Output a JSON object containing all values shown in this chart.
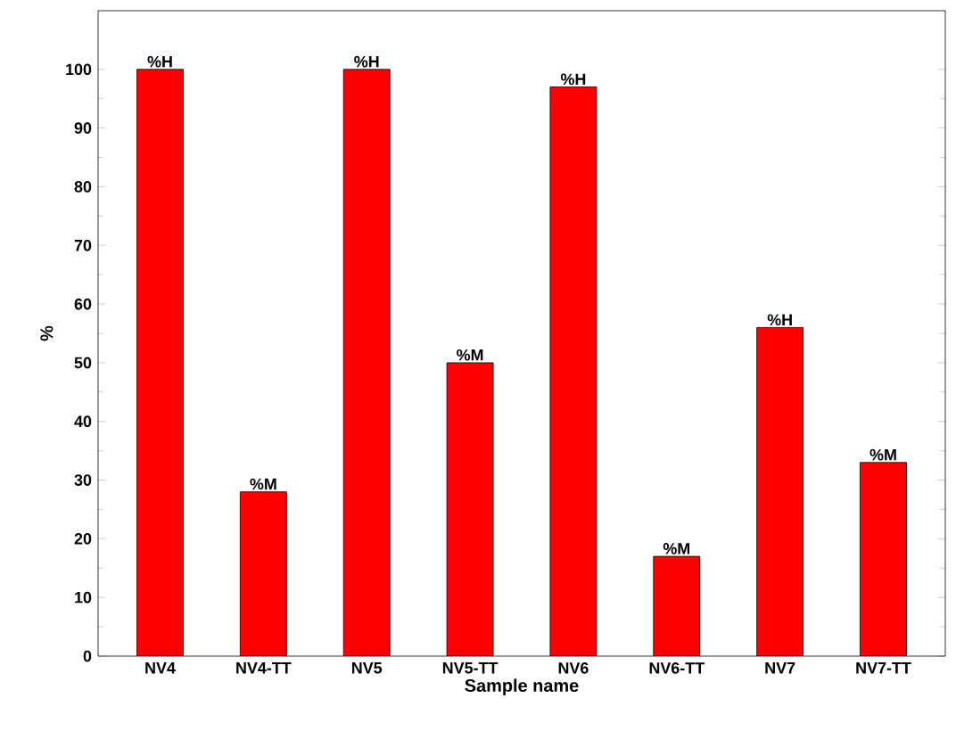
{
  "chart_data": {
    "type": "bar",
    "xlabel": "Sample name",
    "ylabel": "%",
    "categories": [
      "NV4",
      "NV4-TT",
      "NV5",
      "NV5-TT",
      "NV6",
      "NV6-TT",
      "NV7",
      "NV7-TT"
    ],
    "values": [
      100,
      28,
      100,
      50,
      97,
      17,
      56,
      33
    ],
    "color": "#ff0000",
    "ylim": [
      0,
      110
    ],
    "yticks": [
      0,
      10,
      20,
      30,
      40,
      50,
      60,
      70,
      80,
      90,
      100
    ],
    "grid": false,
    "annotations": [
      {
        "text": "%H",
        "x": "NV4",
        "y": 100
      },
      {
        "text": "%M",
        "x": "NV4-TT",
        "y": 28
      },
      {
        "text": "%H",
        "x": "NV5",
        "y": 100
      },
      {
        "text": "%M",
        "x": "NV5-TT",
        "y": 50
      },
      {
        "text": "%H",
        "x": "NV6",
        "y": 97
      },
      {
        "text": "%M",
        "x": "NV6-TT",
        "y": 17
      },
      {
        "text": "%H",
        "x": "NV7",
        "y": 56
      },
      {
        "text": "%M",
        "x": "NV7-TT",
        "y": 33
      }
    ]
  }
}
